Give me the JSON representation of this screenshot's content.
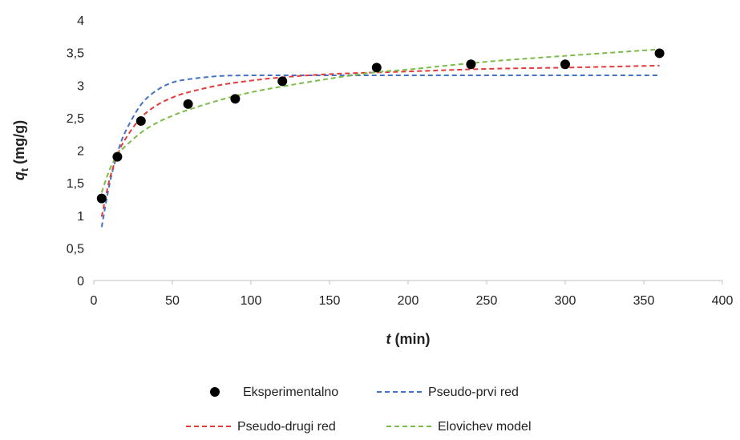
{
  "chart_data": {
    "type": "scatter",
    "x_axis": {
      "label_var": "t",
      "label_rest": " (min)",
      "min": 0,
      "max": 400,
      "ticks": [
        0,
        50,
        100,
        150,
        200,
        250,
        300,
        350,
        400
      ],
      "tick_labels": [
        "0",
        "50",
        "100",
        "150",
        "200",
        "250",
        "300",
        "350",
        "400"
      ]
    },
    "y_axis": {
      "label_var": "q",
      "label_sub": "t",
      "label_rest": " (mg/g)",
      "min": 0,
      "max": 4,
      "ticks": [
        0,
        0.5,
        1,
        1.5,
        2,
        2.5,
        3,
        3.5,
        4
      ],
      "tick_labels": [
        "0",
        "0,5",
        "1",
        "1,5",
        "2",
        "2,5",
        "3",
        "3,5",
        "4"
      ]
    },
    "grid": false,
    "legend_position": "bottom",
    "series": [
      {
        "name": "Eksperimentalno",
        "kind": "points",
        "color": "#000000",
        "x": [
          5,
          15,
          30,
          60,
          90,
          120,
          180,
          240,
          300,
          360
        ],
        "y": [
          1.26,
          1.9,
          2.45,
          2.71,
          2.79,
          3.06,
          3.27,
          3.32,
          3.32,
          3.49
        ]
      },
      {
        "name": "Pseudo-prvi red",
        "kind": "dashed-line",
        "color": "#4472c4",
        "x": [
          5,
          10,
          15,
          20,
          30,
          40,
          50,
          60,
          80,
          100,
          120,
          150,
          200,
          250,
          300,
          360
        ],
        "y": [
          0.82,
          1.48,
          1.95,
          2.28,
          2.7,
          2.92,
          3.04,
          3.09,
          3.14,
          3.15,
          3.15,
          3.15,
          3.15,
          3.15,
          3.15,
          3.15
        ]
      },
      {
        "name": "Pseudo-drugi red",
        "kind": "dashed-line",
        "color": "#e33a3a",
        "x": [
          5,
          10,
          15,
          20,
          30,
          40,
          50,
          60,
          80,
          100,
          120,
          150,
          200,
          250,
          300,
          360
        ],
        "y": [
          0.98,
          1.55,
          1.92,
          2.17,
          2.5,
          2.69,
          2.81,
          2.89,
          3.0,
          3.07,
          3.12,
          3.17,
          3.21,
          3.25,
          3.27,
          3.3
        ]
      },
      {
        "name": "Elovichev model",
        "kind": "dashed-line",
        "color": "#7cbc48",
        "x": [
          5,
          10,
          15,
          20,
          30,
          40,
          50,
          60,
          80,
          100,
          120,
          150,
          180,
          200,
          250,
          300,
          360
        ],
        "y": [
          1.35,
          1.7,
          1.93,
          2.06,
          2.27,
          2.42,
          2.53,
          2.62,
          2.77,
          2.89,
          2.98,
          3.1,
          3.2,
          3.24,
          3.36,
          3.45,
          3.55
        ]
      }
    ]
  }
}
